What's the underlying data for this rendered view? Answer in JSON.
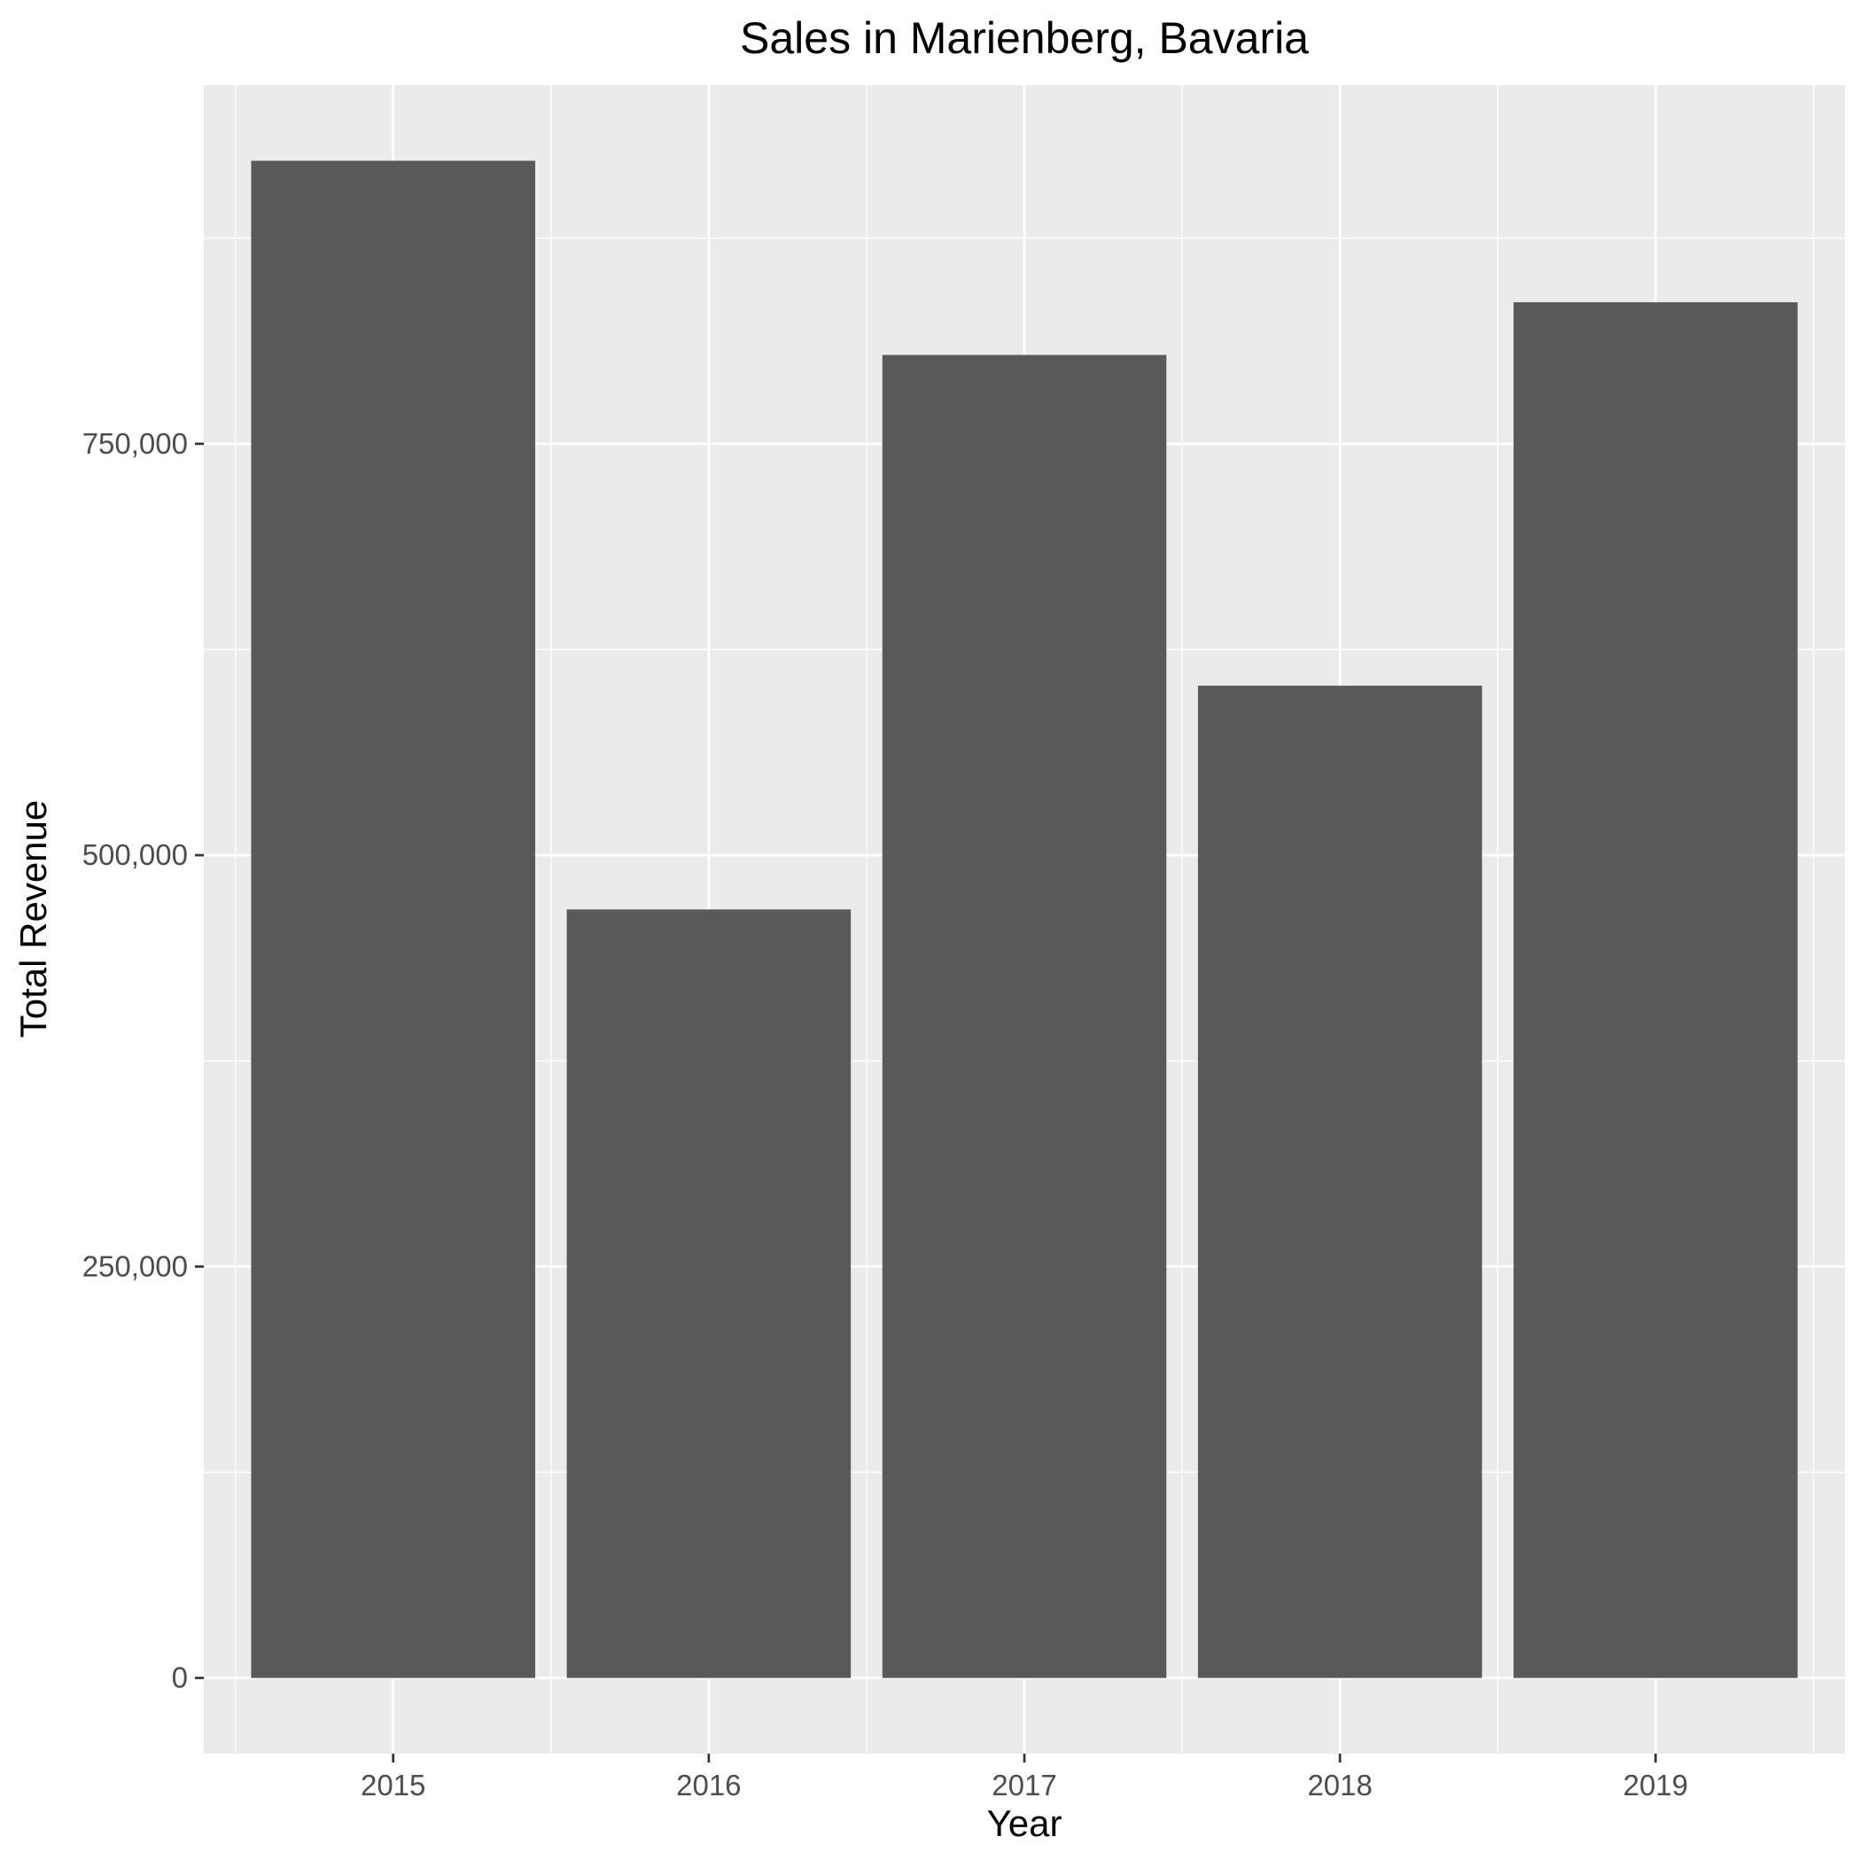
{
  "chart_data": {
    "type": "bar",
    "title": "Sales in Marienberg, Bavaria",
    "xlabel": "Year",
    "ylabel": "Total Revenue",
    "categories": [
      "2015",
      "2016",
      "2017",
      "2018",
      "2019"
    ],
    "values": [
      922000,
      467000,
      804000,
      603000,
      836000
    ],
    "y_ticks": [
      0,
      250000,
      500000,
      750000
    ],
    "y_tick_labels": [
      "0",
      "250,000",
      "500,000",
      "750,000"
    ],
    "ylim": [
      -46000,
      968000
    ],
    "grid": true,
    "legend": "none",
    "colors": {
      "bar": "#595959",
      "panel": "#ebebeb",
      "grid": "#ffffff",
      "tick": "#333333"
    }
  }
}
